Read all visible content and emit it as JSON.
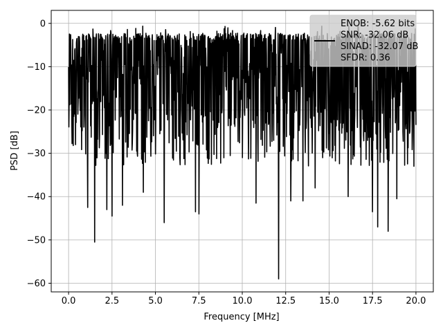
{
  "chart_data": {
    "type": "line",
    "title": "",
    "xlabel": "Frequency [MHz]",
    "ylabel": "PSD [dB]",
    "xlim": [
      -1.0,
      21.0
    ],
    "ylim": [
      -62.0,
      3.0
    ],
    "xticks": [
      0.0,
      2.5,
      5.0,
      7.5,
      10.0,
      12.5,
      15.0,
      17.5,
      20.0
    ],
    "xtick_labels": [
      "0.0",
      "2.5",
      "5.0",
      "7.5",
      "10.0",
      "12.5",
      "15.0",
      "17.5",
      "20.0"
    ],
    "yticks": [
      0,
      -10,
      -20,
      -30,
      -40,
      -50,
      -60
    ],
    "ytick_labels": [
      "0",
      "−10",
      "−20",
      "−30",
      "−40",
      "−50",
      "−60"
    ],
    "grid": true,
    "legend_position": "top-right",
    "series": [
      {
        "name": "ENOB: -5.62 bits\nSNR: -32.06 dB\nSINAD: -32.07 dB\nSFDR: 0.36",
        "color": "#000000",
        "x_range": [
          0.0,
          20.0
        ],
        "points": 1200,
        "typical_range_db": [
          -24,
          -4
        ],
        "peak_db": -0.5,
        "notable_dips": [
          {
            "x": 0.4,
            "y": -28
          },
          {
            "x": 1.1,
            "y": -42.5
          },
          {
            "x": 1.5,
            "y": -50.5
          },
          {
            "x": 2.2,
            "y": -38
          },
          {
            "x": 2.2,
            "y": -43
          },
          {
            "x": 2.5,
            "y": -44.5
          },
          {
            "x": 3.1,
            "y": -42
          },
          {
            "x": 4.3,
            "y": -39
          },
          {
            "x": 5.5,
            "y": -46
          },
          {
            "x": 7.3,
            "y": -43.5
          },
          {
            "x": 7.5,
            "y": -44
          },
          {
            "x": 10.8,
            "y": -41.5
          },
          {
            "x": 12.1,
            "y": -59
          },
          {
            "x": 12.8,
            "y": -41
          },
          {
            "x": 13.5,
            "y": -41
          },
          {
            "x": 14.2,
            "y": -38
          },
          {
            "x": 16.1,
            "y": -40
          },
          {
            "x": 17.5,
            "y": -43.5
          },
          {
            "x": 17.8,
            "y": -47
          },
          {
            "x": 18.4,
            "y": -48
          },
          {
            "x": 18.9,
            "y": -40.5
          }
        ]
      }
    ]
  }
}
